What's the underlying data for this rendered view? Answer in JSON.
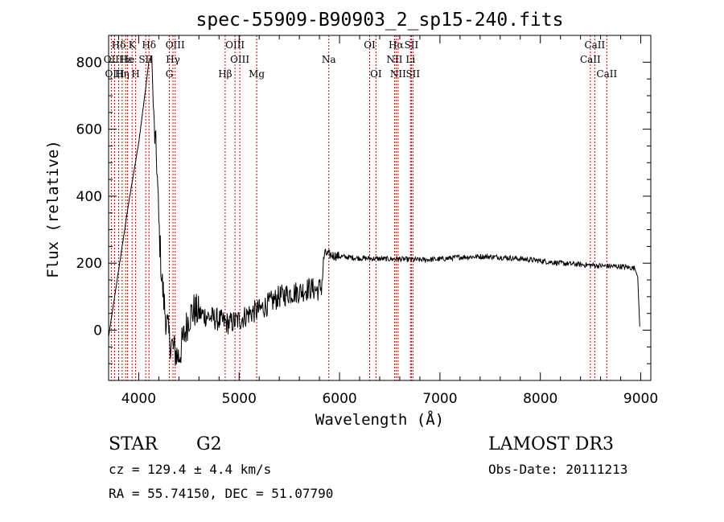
{
  "chart_data": {
    "type": "line",
    "title": "spec-55909-B90903_2_sp15-240.fits",
    "xlabel": "Wavelength (Å)",
    "ylabel": "Flux (relative)",
    "xlim": [
      3700,
      9100
    ],
    "ylim": [
      -150,
      880
    ],
    "x_ticks": [
      4000,
      5000,
      6000,
      7000,
      8000,
      9000
    ],
    "y_ticks": [
      0,
      200,
      400,
      600,
      800
    ],
    "grid": false,
    "line_color": "#000000",
    "marker_color": "#cc0000",
    "spectrum_anchors": [
      [
        3700,
        -20
      ],
      [
        3800,
        180
      ],
      [
        3900,
        380
      ],
      [
        4000,
        560
      ],
      [
        4060,
        700
      ],
      [
        4100,
        800
      ],
      [
        4130,
        820
      ],
      [
        4150,
        620
      ],
      [
        4180,
        500
      ],
      [
        4200,
        320
      ],
      [
        4230,
        150
      ],
      [
        4260,
        60
      ],
      [
        4300,
        -20
      ],
      [
        4350,
        -60
      ],
      [
        4400,
        -80
      ],
      [
        4450,
        -20
      ],
      [
        4500,
        40
      ],
      [
        4550,
        60
      ],
      [
        4600,
        50
      ],
      [
        4700,
        40
      ],
      [
        4800,
        30
      ],
      [
        4900,
        20
      ],
      [
        5000,
        30
      ],
      [
        5100,
        50
      ],
      [
        5200,
        60
      ],
      [
        5300,
        80
      ],
      [
        5400,
        100
      ],
      [
        5500,
        110
      ],
      [
        5600,
        115
      ],
      [
        5700,
        125
      ],
      [
        5780,
        120
      ],
      [
        5820,
        130
      ],
      [
        5850,
        230
      ],
      [
        5900,
        225
      ],
      [
        6000,
        220
      ],
      [
        6200,
        215
      ],
      [
        6400,
        213
      ],
      [
        6600,
        212
      ],
      [
        6800,
        210
      ],
      [
        7000,
        212
      ],
      [
        7200,
        218
      ],
      [
        7400,
        220
      ],
      [
        7600,
        218
      ],
      [
        7800,
        213
      ],
      [
        8000,
        207
      ],
      [
        8200,
        200
      ],
      [
        8400,
        196
      ],
      [
        8600,
        192
      ],
      [
        8800,
        190
      ],
      [
        8940,
        185
      ],
      [
        8970,
        160
      ],
      [
        8990,
        10
      ]
    ],
    "emission_lines": [
      {
        "label": "Hδ",
        "x": 3800,
        "row": 0
      },
      {
        "label": "OII",
        "x": 3727,
        "row": 1
      },
      {
        "label": "OIII",
        "x": 3760,
        "row": 2
      },
      {
        "label": "Hε",
        "x": 3870,
        "row": 1
      },
      {
        "label": "Hη",
        "x": 3835,
        "row": 2
      },
      {
        "label": "K",
        "x": 3934,
        "row": 0
      },
      {
        "label": "He",
        "x": 3889,
        "row": 1
      },
      {
        "label": "H",
        "x": 3969,
        "row": 2
      },
      {
        "label": "Hδ",
        "x": 4102,
        "row": 0
      },
      {
        "label": "SII",
        "x": 4070,
        "row": 1
      },
      {
        "label": "OIII",
        "x": 4363,
        "row": 0
      },
      {
        "label": "Hγ",
        "x": 4341,
        "row": 1
      },
      {
        "label": "G",
        "x": 4305,
        "row": 2
      },
      {
        "label": "Hβ",
        "x": 4861,
        "row": 2
      },
      {
        "label": "OIII",
        "x": 4959,
        "row": 0
      },
      {
        "label": "OIII",
        "x": 5007,
        "row": 1
      },
      {
        "label": "Mg",
        "x": 5175,
        "row": 2
      },
      {
        "label": "Na",
        "x": 5893,
        "row": 1
      },
      {
        "label": "OI",
        "x": 6300,
        "row": 0
      },
      {
        "label": "OI",
        "x": 6363,
        "row": 2
      },
      {
        "label": "Hα",
        "x": 6563,
        "row": 0
      },
      {
        "label": "NII",
        "x": 6548,
        "row": 1
      },
      {
        "label": "NII",
        "x": 6583,
        "row": 2
      },
      {
        "label": "SII",
        "x": 6716,
        "row": 0
      },
      {
        "label": "Li",
        "x": 6707,
        "row": 1
      },
      {
        "label": "SII",
        "x": 6731,
        "row": 2
      },
      {
        "label": "CaII",
        "x": 8542,
        "row": 0
      },
      {
        "label": "CaII",
        "x": 8498,
        "row": 1
      },
      {
        "label": "CaII",
        "x": 8662,
        "row": 2
      }
    ]
  },
  "info": {
    "object_class": "STAR",
    "subclass": "G2",
    "survey": "LAMOST DR3",
    "redshift": "cz = 129.4 ± 4.4 km/s",
    "obs_date": "Obs-Date: 20111213",
    "coords": "RA =  55.74150, DEC =  51.07790"
  }
}
